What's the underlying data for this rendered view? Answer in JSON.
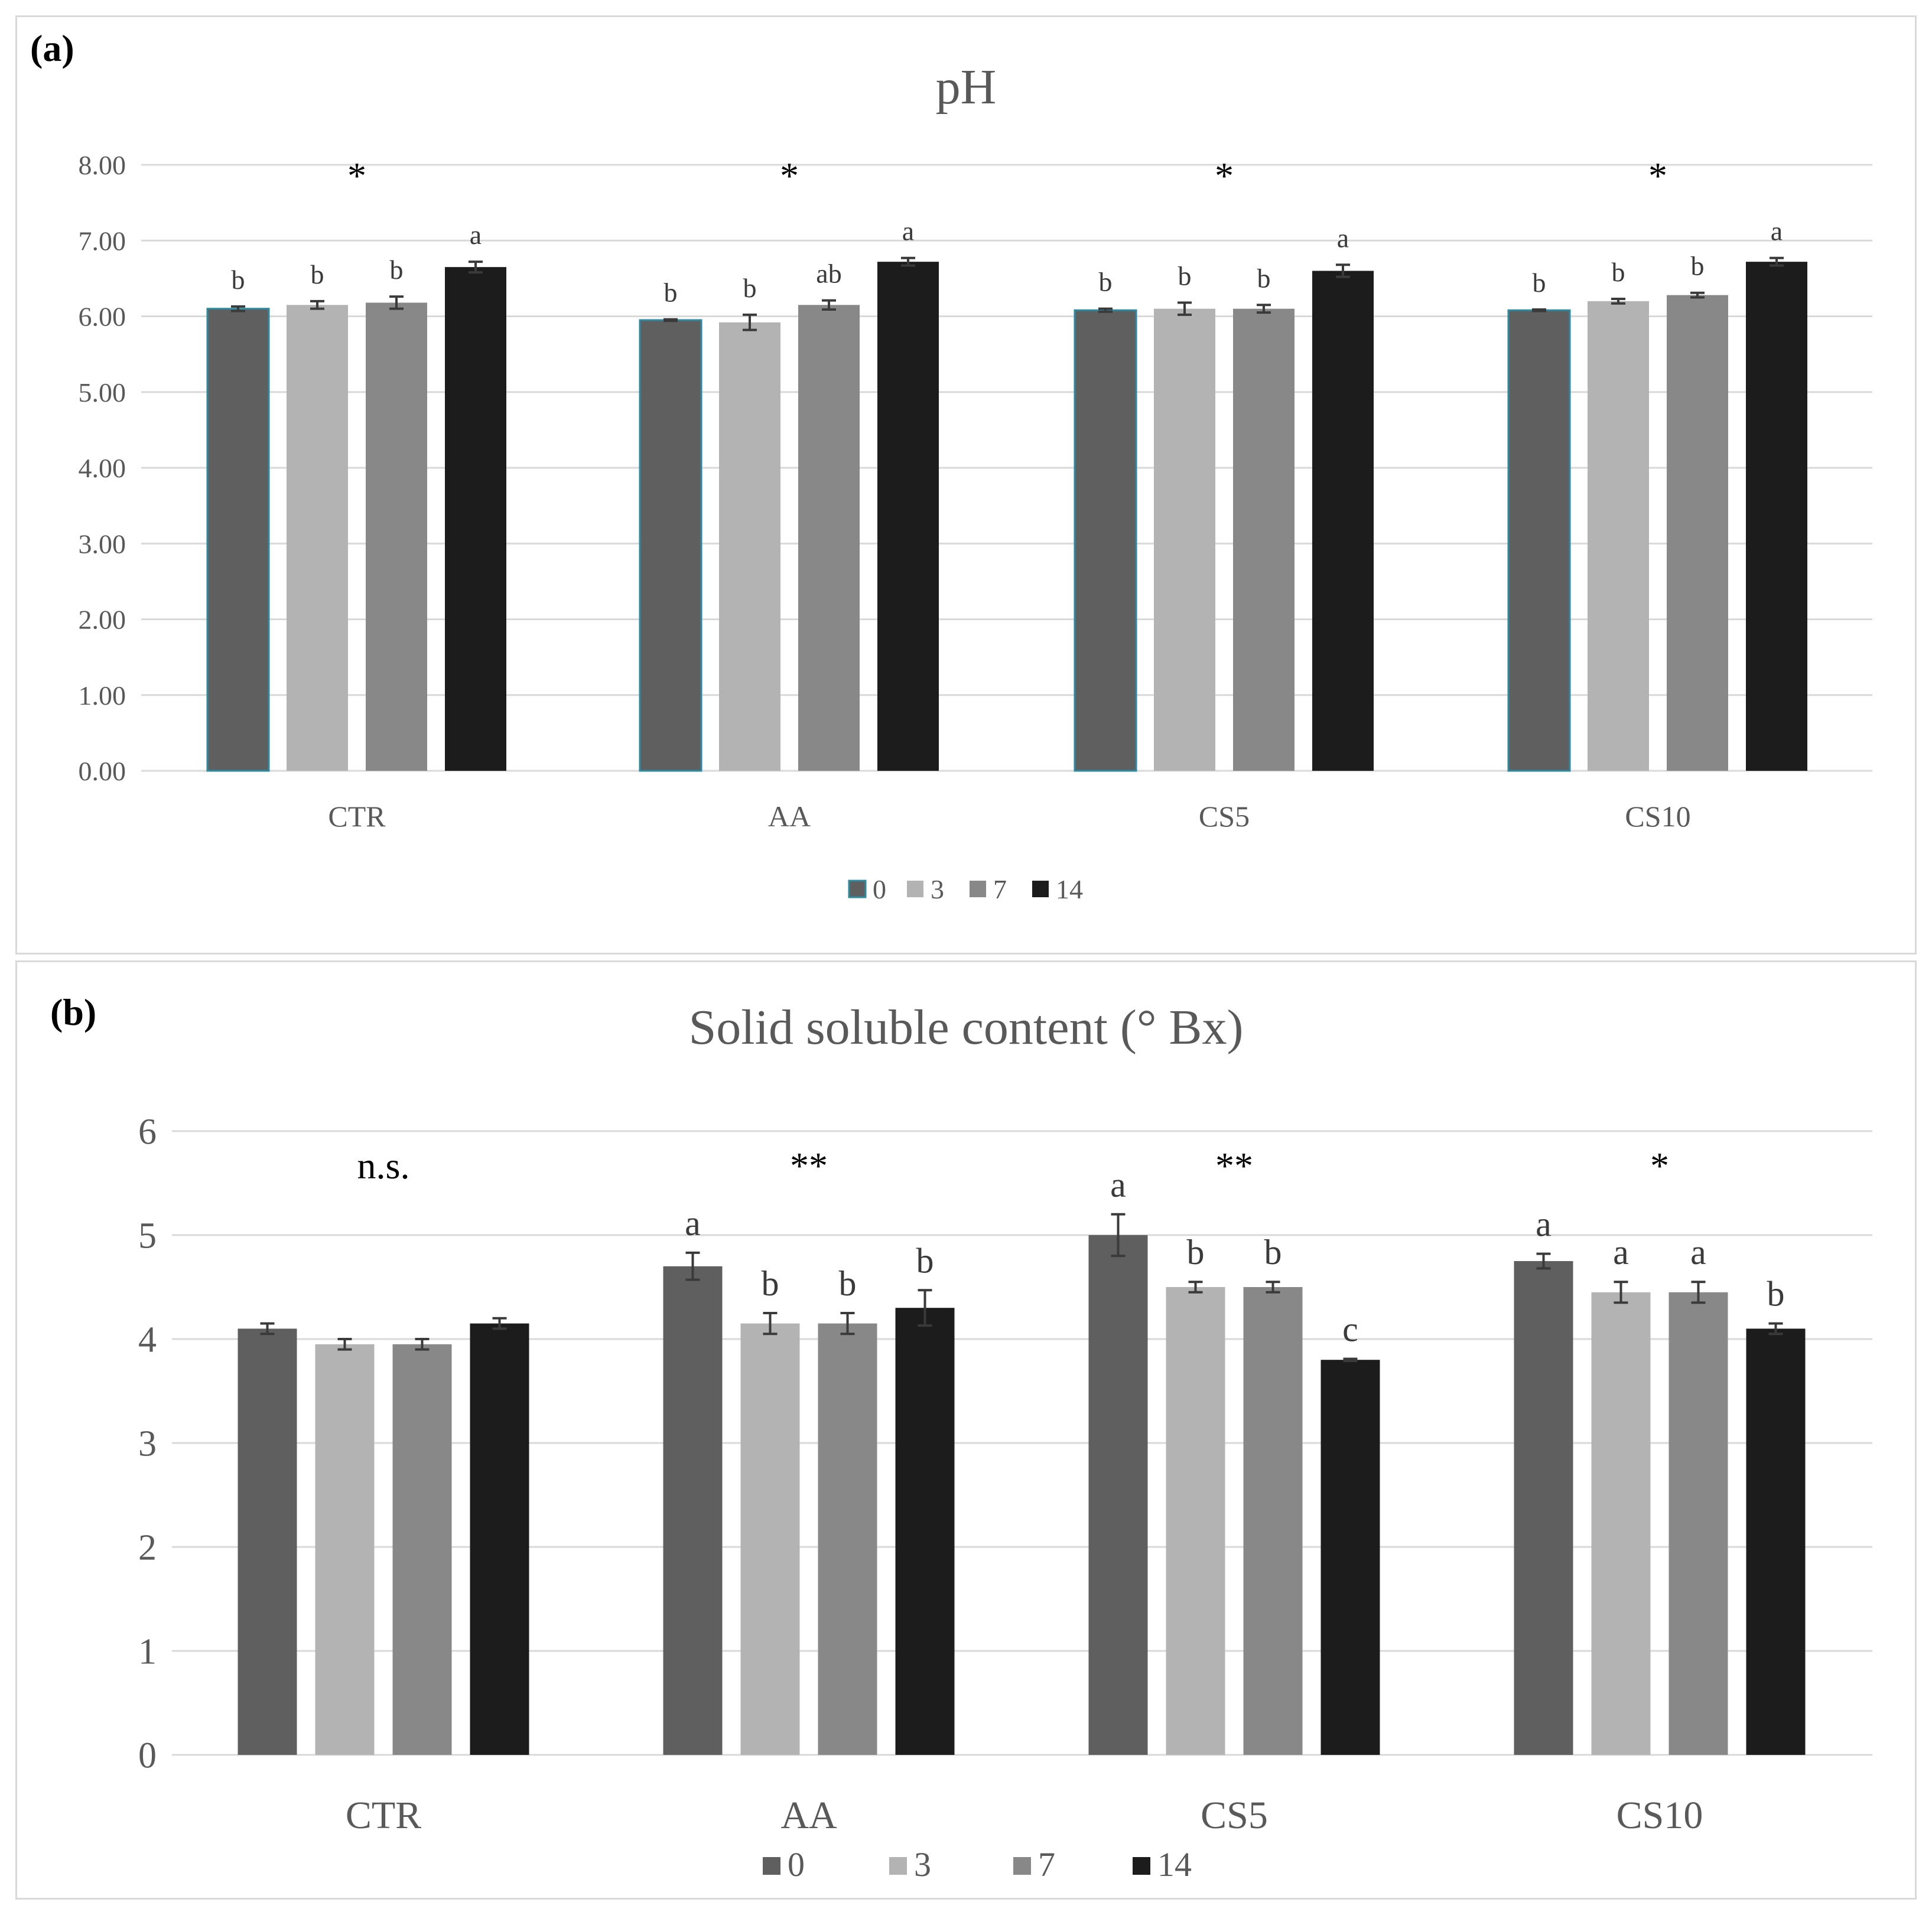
{
  "panels": [
    {
      "label": "(a)",
      "title": "pH"
    },
    {
      "label": "(b)",
      "title": "Solid soluble content (° Bx)"
    }
  ],
  "colors": {
    "0": "#5f5f5f",
    "3": "#b3b3b3",
    "7": "#888888",
    "14": "#1c1c1c",
    "grid": "#d9d9d9",
    "axis_text": "#595959",
    "bar0_edge": "#2e8aa0"
  },
  "chart_data": [
    {
      "type": "bar",
      "title": "pH",
      "categories": [
        "CTR",
        "AA",
        "CS5",
        "CS10"
      ],
      "ylim": [
        0,
        8
      ],
      "yticks": [
        "0.00",
        "1.00",
        "2.00",
        "3.00",
        "4.00",
        "5.00",
        "6.00",
        "7.00",
        "8.00"
      ],
      "grid": true,
      "legend": "bottom-center",
      "legend_labels": [
        "0",
        "3",
        "7",
        "14"
      ],
      "series": [
        {
          "name": "0",
          "values": [
            6.1,
            5.95,
            6.08,
            6.08
          ],
          "errors": [
            0.03,
            0.01,
            0.02,
            0.01
          ],
          "letters": [
            "b",
            "b",
            "b",
            "b"
          ]
        },
        {
          "name": "3",
          "values": [
            6.15,
            5.92,
            6.1,
            6.2
          ],
          "errors": [
            0.05,
            0.1,
            0.08,
            0.03
          ],
          "letters": [
            "b",
            "b",
            "b",
            "b"
          ]
        },
        {
          "name": "7",
          "values": [
            6.18,
            6.15,
            6.1,
            6.28
          ],
          "errors": [
            0.08,
            0.06,
            0.05,
            0.03
          ],
          "letters": [
            "b",
            "ab",
            "b",
            "b"
          ]
        },
        {
          "name": "14",
          "values": [
            6.65,
            6.72,
            6.6,
            6.72
          ],
          "errors": [
            0.07,
            0.05,
            0.08,
            0.05
          ],
          "letters": [
            "a",
            "a",
            "a",
            "a"
          ]
        }
      ],
      "significance": [
        "*",
        "*",
        "*",
        "*"
      ]
    },
    {
      "type": "bar",
      "title": "Solid soluble content (° Bx)",
      "categories": [
        "CTR",
        "AA",
        "CS5",
        "CS10"
      ],
      "ylim": [
        0,
        6
      ],
      "yticks": [
        "0",
        "1",
        "2",
        "3",
        "4",
        "5",
        "6"
      ],
      "grid": true,
      "legend": "bottom-center",
      "legend_labels": [
        "0",
        "3",
        "7",
        "14"
      ],
      "series": [
        {
          "name": "0",
          "values": [
            4.1,
            4.7,
            5.0,
            4.75
          ],
          "errors": [
            0.05,
            0.13,
            0.2,
            0.07
          ],
          "letters": [
            "",
            "a",
            "a",
            "a"
          ]
        },
        {
          "name": "3",
          "values": [
            3.95,
            4.15,
            4.5,
            4.45
          ],
          "errors": [
            0.05,
            0.1,
            0.05,
            0.1
          ],
          "letters": [
            "",
            "b",
            "b",
            "a"
          ]
        },
        {
          "name": "7",
          "values": [
            3.95,
            4.15,
            4.5,
            4.45
          ],
          "errors": [
            0.05,
            0.1,
            0.05,
            0.1
          ],
          "letters": [
            "",
            "b",
            "b",
            "a"
          ]
        },
        {
          "name": "14",
          "values": [
            4.15,
            4.3,
            3.8,
            4.1
          ],
          "errors": [
            0.05,
            0.17,
            0.01,
            0.05
          ],
          "letters": [
            "",
            "b",
            "c",
            "b"
          ]
        }
      ],
      "significance": [
        "n.s.",
        "**",
        "**",
        "*"
      ]
    }
  ]
}
